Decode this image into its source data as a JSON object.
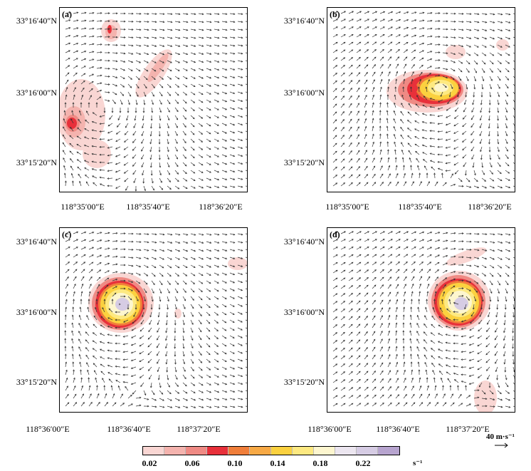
{
  "panels": [
    {
      "id": "a",
      "label": "(a)",
      "y_ticks": [
        "33°16′40″N",
        "33°16′00″N",
        "33°15′20″N"
      ],
      "x_ticks": [
        "118°35′00″E",
        "118°35′40″E",
        "118°36′20″E"
      ]
    },
    {
      "id": "b",
      "label": "(b)",
      "y_ticks": [
        "33°16′40″N",
        "33°16′00″N",
        "33°15′20″N"
      ],
      "x_ticks": [
        "118°35′00″E",
        "118°35′40″E",
        "118°36′20″E"
      ]
    },
    {
      "id": "c",
      "label": "(c)",
      "y_ticks": [
        "33°16′40″N",
        "33°16′00″N",
        "33°15′20″N"
      ],
      "x_ticks": [
        "118°36′00″E",
        "118°36′40″E",
        "118°37′20″E"
      ]
    },
    {
      "id": "d",
      "label": "(d)",
      "y_ticks": [
        "33°16′40″N",
        "33°16′00″N",
        "33°15′20″N"
      ],
      "x_ticks": [
        "118°36′00″E",
        "118°36′40″E",
        "118°37′20″E"
      ]
    }
  ],
  "reference_vector": {
    "label": "40 m·s⁻¹"
  },
  "colorbar": {
    "colors": [
      "#f9d6d3",
      "#f4b3ae",
      "#ef8a84",
      "#e8303a",
      "#f07e3a",
      "#f7a945",
      "#fbd13f",
      "#fde981",
      "#fdf6cf",
      "#ece6f0",
      "#d6cce4",
      "#b7a4cf"
    ],
    "tick_labels": [
      "0.02",
      "0.06",
      "0.10",
      "0.14",
      "0.18",
      "0.22"
    ],
    "unit": "s⁻¹"
  }
}
